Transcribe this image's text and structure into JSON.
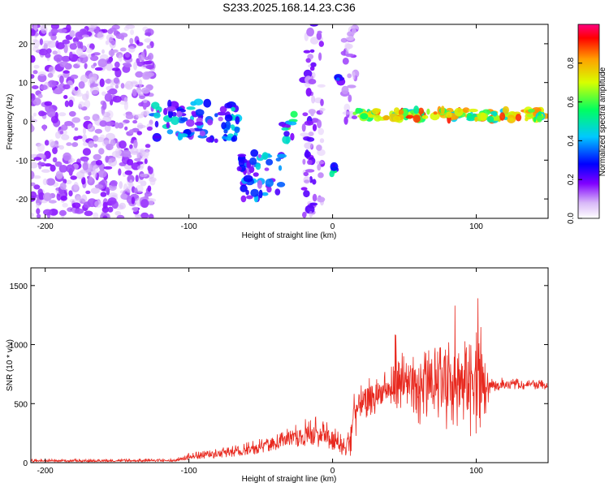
{
  "figure": {
    "title": "S233.2025.168.14.23.C36"
  },
  "chart_data": [
    {
      "type": "heatmap",
      "xlabel": "Height of straight line (km)",
      "ylabel": "Frequency (Hz)",
      "xlim": [
        -210,
        150
      ],
      "ylim": [
        -25,
        25
      ],
      "x_ticks": [
        -200,
        -100,
        0,
        100
      ],
      "y_ticks": [
        -20,
        -10,
        0,
        10,
        20
      ],
      "colorbar": {
        "label": "Normalized spectral amplitude",
        "range": [
          0,
          1
        ],
        "ticks": [
          0.0,
          0.2,
          0.4,
          0.6,
          0.8
        ],
        "colormap": [
          "#ffffff",
          "#d8b8f8",
          "#8000ff",
          "#0000ff",
          "#00c8ff",
          "#00ff60",
          "#d8ff00",
          "#ffa000",
          "#ff0000",
          "#ff0080"
        ]
      },
      "features": [
        {
          "name": "broadband noise",
          "x": [
            -210,
            -125
          ],
          "freq": [
            -25,
            25
          ],
          "amplitude": 0.2
        },
        {
          "name": "band 1",
          "x": [
            -125,
            -65
          ],
          "freq": [
            -5,
            5
          ],
          "amplitude": 0.45
        },
        {
          "name": "band 2",
          "x": [
            -65,
            -35
          ],
          "freq": [
            -20,
            -8
          ],
          "amplitude": 0.45
        },
        {
          "name": "rising streak",
          "x": [
            -35,
            -25
          ],
          "freq": [
            -5,
            3
          ],
          "amplitude": 0.55
        },
        {
          "name": "vertical streak A",
          "x": [
            -20,
            -12
          ],
          "freq": [
            -25,
            25
          ],
          "amplitude": 0.25
        },
        {
          "name": "vertical streak B",
          "x": [
            -10,
            -7
          ],
          "freq": [
            -25,
            25
          ],
          "amplitude": 0.2
        },
        {
          "name": "spot",
          "x": [
            -2,
            2
          ],
          "freq": [
            -15,
            -11
          ],
          "amplitude": 0.5
        },
        {
          "name": "spot",
          "x": [
            3,
            7
          ],
          "freq": [
            9,
            12
          ],
          "amplitude": 0.5
        },
        {
          "name": "streak",
          "x": [
            8,
            16
          ],
          "freq": [
            0,
            25
          ],
          "amplitude": 0.2
        },
        {
          "name": "tone",
          "x": [
            15,
            150
          ],
          "freq": [
            0.5,
            3
          ],
          "amplitude": 0.8
        }
      ]
    },
    {
      "type": "line",
      "xlabel": "Height of straight line (km)",
      "ylabel": "SNR (10 * v/v)",
      "xlim": [
        -210,
        150
      ],
      "ylim": [
        0,
        1650
      ],
      "x_ticks": [
        -200,
        -100,
        0,
        100
      ],
      "y_ticks": [
        0,
        500,
        1000,
        1500
      ],
      "series": [
        {
          "color": "#e8281e",
          "envelope": {
            "x": [
              -210,
              -110,
              -100,
              -80,
              -60,
              -45,
              -30,
              -15,
              0,
              8,
              12,
              15,
              20,
              30,
              40,
              45,
              50,
              60,
              70,
              80,
              85,
              90,
              95,
              100,
              105,
              110,
              120,
              135,
              150
            ],
            "lo": [
              5,
              8,
              20,
              40,
              60,
              80,
              120,
              150,
              100,
              40,
              20,
              200,
              300,
              400,
              450,
              420,
              470,
              300,
              450,
              250,
              300,
              200,
              150,
              150,
              200,
              600,
              620,
              620,
              620
            ],
            "hi": [
              30,
              35,
              80,
              120,
              170,
              220,
              300,
              400,
              350,
              250,
              380,
              600,
              680,
              750,
              800,
              1300,
              900,
              950,
              1000,
              1050,
              1350,
              1150,
              1250,
              1650,
              900,
              720,
              720,
              700,
              700
            ],
            "mid": [
              15,
              18,
              50,
              80,
              110,
              150,
              200,
              250,
              200,
              130,
              200,
              420,
              500,
              580,
              620,
              700,
              650,
              650,
              700,
              700,
              750,
              700,
              700,
              800,
              650,
              660,
              660,
              660,
              660
            ]
          }
        }
      ]
    }
  ]
}
